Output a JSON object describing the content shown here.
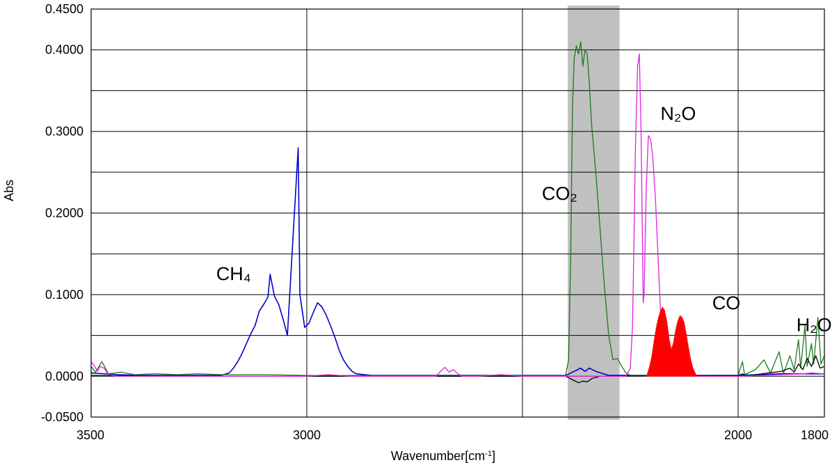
{
  "chart_data": {
    "type": "line",
    "title": "",
    "xlabel": "Wavenumber[cm",
    "xlabel_sup": "-1",
    "xlabel_suffix": "]",
    "ylabel": "Abs",
    "xlim": [
      3500,
      1800
    ],
    "ylim": [
      -0.05,
      0.45
    ],
    "x_reversed": true,
    "grid": true,
    "x_gridlines": [
      3500,
      3000,
      2500,
      2000,
      1800
    ],
    "y_gridlines": [
      -0.05,
      0.0,
      0.05,
      0.1,
      0.15,
      0.2,
      0.25,
      0.3,
      0.35,
      0.4,
      0.45
    ],
    "x_tick_labels": [
      {
        "value": 3500,
        "text": "3500"
      },
      {
        "value": 3000,
        "text": "3000"
      },
      {
        "value": 2000,
        "text": "2000"
      },
      {
        "value": 1800,
        "text": "1800"
      }
    ],
    "y_tick_labels": [
      {
        "value": 0.45,
        "text": "0.4500"
      },
      {
        "value": 0.4,
        "text": "0.4000"
      },
      {
        "value": 0.3,
        "text": "0.3000"
      },
      {
        "value": 0.2,
        "text": "0.2000"
      },
      {
        "value": 0.1,
        "text": "0.1000"
      },
      {
        "value": 0.0,
        "text": "0.0000"
      },
      {
        "value": -0.05,
        "text": "-0.0500"
      }
    ],
    "highlight_band": {
      "x_from": 2395,
      "x_to": 2275,
      "color": "#c0c0c0"
    },
    "annotations": [
      {
        "text": "CH₄",
        "x": 3210,
        "y": 0.118
      },
      {
        "text": "CO₂",
        "x": 2455,
        "y": 0.216
      },
      {
        "text": "N₂O",
        "x": 2180,
        "y": 0.314
      },
      {
        "text": "CO",
        "x": 2060,
        "y": 0.082
      },
      {
        "text": "H₂O",
        "x": 1865,
        "y": 0.055
      }
    ],
    "series": [
      {
        "color": "#0000cc",
        "kind": "spiky",
        "points": [
          [
            3500,
            0.004
          ],
          [
            3440,
            0.002
          ],
          [
            3380,
            0.001
          ],
          [
            3300,
            0.001
          ],
          [
            3200,
            0.001
          ],
          [
            3180,
            0.004
          ],
          [
            3170,
            0.01
          ],
          [
            3160,
            0.018
          ],
          [
            3150,
            0.028
          ],
          [
            3140,
            0.04
          ],
          [
            3130,
            0.052
          ],
          [
            3120,
            0.062
          ],
          [
            3110,
            0.08
          ],
          [
            3100,
            0.088
          ],
          [
            3090,
            0.097
          ],
          [
            3085,
            0.125
          ],
          [
            3075,
            0.098
          ],
          [
            3065,
            0.088
          ],
          [
            3055,
            0.07
          ],
          [
            3045,
            0.05
          ],
          [
            3020,
            0.28
          ],
          [
            3016,
            0.1
          ],
          [
            3005,
            0.06
          ],
          [
            2995,
            0.065
          ],
          [
            2985,
            0.078
          ],
          [
            2975,
            0.09
          ],
          [
            2965,
            0.085
          ],
          [
            2955,
            0.075
          ],
          [
            2945,
            0.062
          ],
          [
            2935,
            0.048
          ],
          [
            2925,
            0.032
          ],
          [
            2915,
            0.02
          ],
          [
            2905,
            0.012
          ],
          [
            2895,
            0.006
          ],
          [
            2885,
            0.003
          ],
          [
            2850,
            0.001
          ],
          [
            2700,
            0.001
          ],
          [
            2500,
            0.001
          ],
          [
            2400,
            0.001
          ],
          [
            2380,
            0.006
          ],
          [
            2365,
            0.01
          ],
          [
            2355,
            0.006
          ],
          [
            2345,
            0.01
          ],
          [
            2330,
            0.006
          ],
          [
            2300,
            0.001
          ],
          [
            2200,
            0.001
          ],
          [
            2000,
            0.001
          ],
          [
            1900,
            0.003
          ],
          [
            1800,
            0.003
          ]
        ]
      },
      {
        "color": "#1a7a1a",
        "kind": "line",
        "points": [
          [
            3500,
            0.012
          ],
          [
            3490,
            0.005
          ],
          [
            3475,
            0.018
          ],
          [
            3460,
            0.003
          ],
          [
            3430,
            0.005
          ],
          [
            3400,
            0.002
          ],
          [
            3350,
            0.003
          ],
          [
            3300,
            0.002
          ],
          [
            3250,
            0.003
          ],
          [
            3200,
            0.002
          ],
          [
            3100,
            0.002
          ],
          [
            3000,
            0.001
          ],
          [
            2900,
            0.001
          ],
          [
            2800,
            0.001
          ],
          [
            2700,
            0.001
          ],
          [
            2600,
            0.001
          ],
          [
            2500,
            0.001
          ],
          [
            2400,
            0.001
          ],
          [
            2393,
            0.02
          ],
          [
            2388,
            0.15
          ],
          [
            2384,
            0.33
          ],
          [
            2380,
            0.39
          ],
          [
            2375,
            0.405
          ],
          [
            2370,
            0.395
          ],
          [
            2365,
            0.41
          ],
          [
            2360,
            0.38
          ],
          [
            2355,
            0.4
          ],
          [
            2350,
            0.395
          ],
          [
            2345,
            0.36
          ],
          [
            2340,
            0.31
          ],
          [
            2330,
            0.25
          ],
          [
            2320,
            0.18
          ],
          [
            2310,
            0.11
          ],
          [
            2300,
            0.05
          ],
          [
            2290,
            0.02
          ],
          [
            2280,
            0.022
          ],
          [
            2270,
            0.012
          ],
          [
            2260,
            0.004
          ],
          [
            2250,
            0.001
          ],
          [
            2100,
            0.001
          ],
          [
            2000,
            0.001
          ],
          [
            1990,
            0.018
          ],
          [
            1985,
            0.002
          ],
          [
            1960,
            0.008
          ],
          [
            1940,
            0.02
          ],
          [
            1925,
            0.004
          ],
          [
            1905,
            0.03
          ],
          [
            1895,
            0.003
          ],
          [
            1880,
            0.025
          ],
          [
            1870,
            0.008
          ],
          [
            1860,
            0.045
          ],
          [
            1855,
            0.01
          ],
          [
            1845,
            0.062
          ],
          [
            1840,
            0.012
          ],
          [
            1830,
            0.04
          ],
          [
            1825,
            0.015
          ],
          [
            1815,
            0.072
          ],
          [
            1808,
            0.015
          ],
          [
            1800,
            0.025
          ]
        ]
      },
      {
        "color": "#000000",
        "kind": "line",
        "points": [
          [
            3500,
            0.001
          ],
          [
            3300,
            0.0
          ],
          [
            3000,
            0.0
          ],
          [
            2700,
            0.0
          ],
          [
            2500,
            0.0
          ],
          [
            2400,
            0.0
          ],
          [
            2385,
            -0.004
          ],
          [
            2370,
            -0.008
          ],
          [
            2360,
            -0.006
          ],
          [
            2350,
            -0.007
          ],
          [
            2340,
            -0.003
          ],
          [
            2320,
            0.0
          ],
          [
            2000,
            0.001
          ],
          [
            1990,
            0.003
          ],
          [
            1980,
            0.0
          ],
          [
            1960,
            0.002
          ],
          [
            1930,
            0.004
          ],
          [
            1900,
            0.006
          ],
          [
            1880,
            0.01
          ],
          [
            1870,
            0.005
          ],
          [
            1860,
            0.015
          ],
          [
            1850,
            0.008
          ],
          [
            1840,
            0.022
          ],
          [
            1830,
            0.012
          ],
          [
            1820,
            0.025
          ],
          [
            1810,
            0.01
          ],
          [
            1800,
            0.012
          ]
        ]
      },
      {
        "color": "#e020e0",
        "kind": "line",
        "points": [
          [
            3500,
            0.018
          ],
          [
            3492,
            0.012
          ],
          [
            3485,
            0.006
          ],
          [
            3480,
            0.012
          ],
          [
            3470,
            0.01
          ],
          [
            3460,
            0.002
          ],
          [
            3440,
            0.0
          ],
          [
            3300,
            0.0
          ],
          [
            3000,
            0.0
          ],
          [
            2950,
            0.002
          ],
          [
            2900,
            0.0
          ],
          [
            2800,
            0.0
          ],
          [
            2700,
            0.0
          ],
          [
            2690,
            0.006
          ],
          [
            2680,
            0.011
          ],
          [
            2670,
            0.005
          ],
          [
            2660,
            0.008
          ],
          [
            2650,
            0.003
          ],
          [
            2640,
            0.0
          ],
          [
            2600,
            0.0
          ],
          [
            2550,
            0.002
          ],
          [
            2500,
            0.0
          ],
          [
            2400,
            0.0
          ],
          [
            2260,
            0.0
          ],
          [
            2250,
            0.01
          ],
          [
            2245,
            0.06
          ],
          [
            2242,
            0.15
          ],
          [
            2238,
            0.28
          ],
          [
            2233,
            0.38
          ],
          [
            2229,
            0.395
          ],
          [
            2225,
            0.3
          ],
          [
            2220,
            0.09
          ],
          [
            2218,
            0.1
          ],
          [
            2213,
            0.23
          ],
          [
            2208,
            0.295
          ],
          [
            2203,
            0.29
          ],
          [
            2198,
            0.27
          ],
          [
            2192,
            0.22
          ],
          [
            2186,
            0.15
          ],
          [
            2180,
            0.08
          ],
          [
            2170,
            0.03
          ],
          [
            2160,
            0.01
          ],
          [
            2150,
            0.002
          ],
          [
            2100,
            0.0
          ],
          [
            2000,
            0.0
          ],
          [
            1950,
            0.001
          ],
          [
            1900,
            0.002
          ],
          [
            1850,
            0.003
          ],
          [
            1830,
            0.004
          ],
          [
            1800,
            0.003
          ]
        ]
      },
      {
        "color": "#ff0000",
        "kind": "filled-band",
        "points": [
          [
            2212,
            0.0
          ],
          [
            2205,
            0.012
          ],
          [
            2200,
            0.024
          ],
          [
            2195,
            0.042
          ],
          [
            2190,
            0.058
          ],
          [
            2185,
            0.07
          ],
          [
            2180,
            0.078
          ],
          [
            2175,
            0.082
          ],
          [
            2170,
            0.078
          ],
          [
            2165,
            0.065
          ],
          [
            2160,
            0.045
          ],
          [
            2155,
            0.032
          ],
          [
            2150,
            0.04
          ],
          [
            2145,
            0.055
          ],
          [
            2140,
            0.066
          ],
          [
            2135,
            0.072
          ],
          [
            2130,
            0.07
          ],
          [
            2125,
            0.064
          ],
          [
            2120,
            0.05
          ],
          [
            2115,
            0.034
          ],
          [
            2110,
            0.02
          ],
          [
            2105,
            0.01
          ],
          [
            2100,
            0.004
          ],
          [
            2095,
            0.0
          ]
        ]
      }
    ]
  }
}
